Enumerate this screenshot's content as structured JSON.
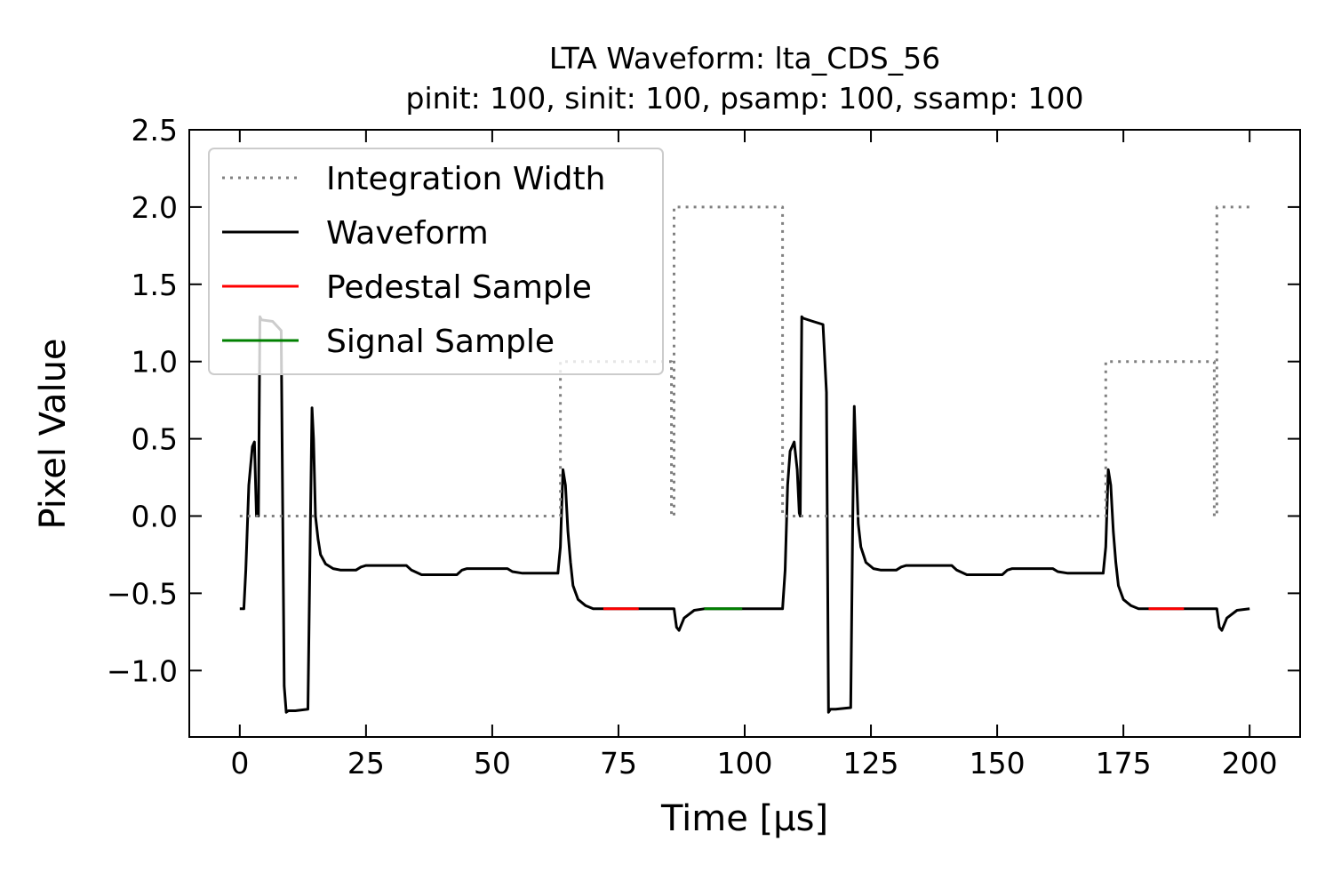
{
  "chart_data": {
    "type": "line",
    "title": "LTA Waveform: lta_CDS_56",
    "subtitle": "pinit: 100, sinit: 100, psamp: 100, ssamp: 100",
    "xlabel": "Time [μs]",
    "ylabel": "Pixel Value",
    "xlim": [
      -10,
      210
    ],
    "ylim": [
      -1.43,
      2.5
    ],
    "xticks": [
      0,
      25,
      50,
      75,
      100,
      125,
      150,
      175,
      200
    ],
    "yticks": [
      -1.0,
      -0.5,
      0.0,
      0.5,
      1.0,
      1.5,
      2.0,
      2.5
    ],
    "ytick_labels": [
      "−1.0",
      "−0.5",
      "0.0",
      "0.5",
      "1.0",
      "1.5",
      "2.0",
      "2.5"
    ],
    "grid": false,
    "legend_position": "top-left",
    "colors": {
      "integration_width": "#808080",
      "waveform": "#000000",
      "pedestal_sample": "#ff0000",
      "signal_sample": "#008000"
    },
    "series": [
      {
        "name": "Integration Width",
        "style": "dotted",
        "x": [
          0,
          63.5,
          63.5,
          85.5,
          85.5,
          86,
          86,
          107.5,
          107.5,
          108,
          108,
          171.5,
          171.5,
          193,
          193,
          193.5,
          193.5,
          200
        ],
        "y": [
          0,
          0,
          1,
          1,
          0,
          0,
          2,
          2,
          0,
          0,
          0,
          0,
          1,
          1,
          0,
          0,
          2,
          2
        ]
      },
      {
        "name": "Waveform",
        "style": "solid",
        "x": [
          0,
          0.8,
          1.2,
          1.8,
          2.5,
          2.9,
          3.3,
          3.7,
          4.0,
          4.3,
          6.5,
          8.2,
          8.8,
          9.2,
          9.6,
          10.0,
          11.0,
          13.5,
          14.0,
          14.3,
          14.6,
          15.0,
          15.5,
          16.0,
          17.0,
          18.5,
          20.0,
          23.0,
          24.0,
          25.0,
          33.0,
          34.0,
          36.0,
          43.0,
          44.0,
          45.0,
          53.0,
          54.0,
          56.0,
          63.0,
          63.5,
          64.0,
          64.5,
          65.0,
          65.5,
          66.0,
          67.0,
          68.5,
          70.0,
          72.0,
          86.0,
          86.5,
          87.0,
          88.0,
          90.0,
          92.0,
          107.5,
          108.0,
          108.5,
          109.0,
          109.8,
          110.4,
          110.8,
          111.0,
          111.3,
          111.6,
          113.5,
          115.5,
          116.2,
          116.6,
          117.0,
          118.0,
          121.0,
          121.4,
          121.7,
          122.0,
          122.5,
          123.0,
          124.0,
          125.5,
          127.0,
          130.0,
          131.0,
          132.0,
          141.0,
          142.0,
          144.0,
          151.0,
          152.0,
          153.0,
          161.0,
          162.0,
          164.0,
          171.0,
          171.5,
          172.0,
          172.5,
          173.0,
          173.5,
          174.0,
          175.0,
          176.5,
          178.0,
          180.0,
          193.5,
          194.0,
          194.5,
          195.5,
          197.5,
          200.0
        ],
        "y": [
          -0.6,
          -0.6,
          -0.35,
          0.2,
          0.45,
          0.48,
          0.0,
          0.0,
          1.29,
          1.27,
          1.26,
          1.2,
          -1.1,
          -1.27,
          -1.26,
          -1.26,
          -1.26,
          -1.25,
          0.0,
          0.7,
          0.5,
          0.0,
          -0.15,
          -0.25,
          -0.31,
          -0.34,
          -0.35,
          -0.35,
          -0.33,
          -0.32,
          -0.32,
          -0.35,
          -0.38,
          -0.38,
          -0.35,
          -0.34,
          -0.34,
          -0.36,
          -0.37,
          -0.37,
          -0.2,
          0.3,
          0.2,
          -0.1,
          -0.3,
          -0.45,
          -0.54,
          -0.58,
          -0.6,
          -0.6,
          -0.6,
          -0.72,
          -0.74,
          -0.66,
          -0.61,
          -0.6,
          -0.6,
          -0.35,
          0.2,
          0.42,
          0.48,
          0.3,
          0.02,
          0.0,
          1.29,
          1.28,
          1.26,
          1.24,
          0.8,
          -1.27,
          -1.25,
          -1.25,
          -1.24,
          0.0,
          0.71,
          0.4,
          -0.05,
          -0.2,
          -0.3,
          -0.34,
          -0.35,
          -0.35,
          -0.33,
          -0.32,
          -0.32,
          -0.35,
          -0.38,
          -0.38,
          -0.35,
          -0.34,
          -0.34,
          -0.36,
          -0.37,
          -0.37,
          -0.2,
          0.3,
          0.2,
          -0.1,
          -0.3,
          -0.45,
          -0.54,
          -0.58,
          -0.6,
          -0.6,
          -0.6,
          -0.72,
          -0.74,
          -0.66,
          -0.61,
          -0.6
        ]
      },
      {
        "name": "Pedestal Sample",
        "style": "solid",
        "segments": [
          {
            "x": [
              72,
              79
            ],
            "y": [
              -0.6,
              -0.6
            ]
          },
          {
            "x": [
              180,
              187
            ],
            "y": [
              -0.6,
              -0.6
            ]
          }
        ]
      },
      {
        "name": "Signal Sample",
        "style": "solid",
        "segments": [
          {
            "x": [
              92,
              99.5
            ],
            "y": [
              -0.6,
              -0.6
            ]
          }
        ]
      }
    ]
  }
}
